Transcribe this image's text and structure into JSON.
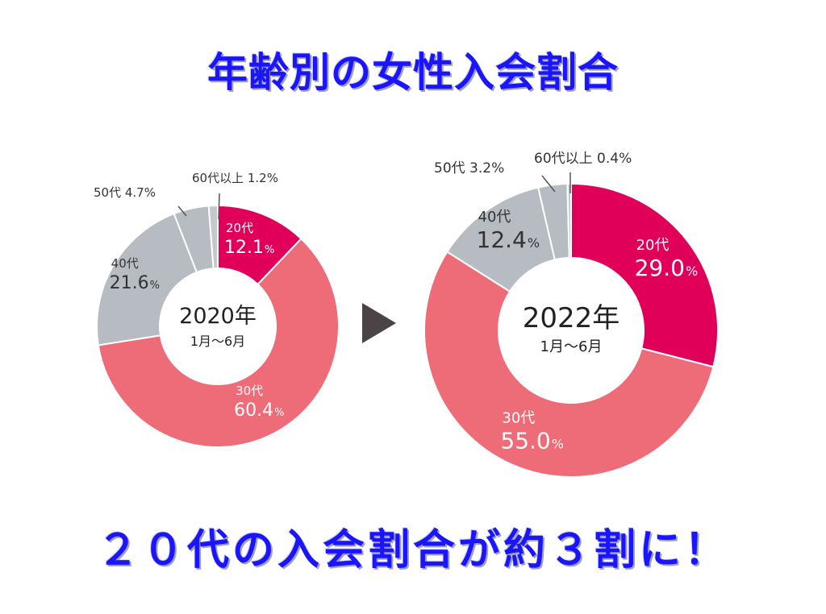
{
  "title": "年齢別の女性入会割合",
  "subtitle": "２０代の入会割合が約３割に！",
  "colors": {
    "20s": "#e0005a",
    "30s": "#ee6b78",
    "40s": "#b7bcc2",
    "50s": "#b7bcc2",
    "60s": "#c4c8cc",
    "arrow": "#4a4446",
    "accent": "#1a14ff"
  },
  "chart_data": [
    {
      "type": "pie",
      "center_year": "2020年",
      "center_period": "1月～6月",
      "slices": [
        {
          "category": "20代",
          "value": 12.1,
          "value_label": "12.1",
          "unit": "%"
        },
        {
          "category": "30代",
          "value": 60.4,
          "value_label": "60.4",
          "unit": "%"
        },
        {
          "category": "40代",
          "value": 21.6,
          "value_label": "21.6",
          "unit": "%"
        },
        {
          "category": "50代",
          "value": 4.7,
          "value_label": "4.7",
          "unit": "%"
        },
        {
          "category": "60代以上",
          "value": 1.2,
          "value_label": "1.2",
          "unit": "%"
        }
      ]
    },
    {
      "type": "pie",
      "center_year": "2022年",
      "center_period": "1月～6月",
      "slices": [
        {
          "category": "20代",
          "value": 29.0,
          "value_label": "29.0",
          "unit": "%"
        },
        {
          "category": "30代",
          "value": 55.0,
          "value_label": "55.0",
          "unit": "%"
        },
        {
          "category": "40代",
          "value": 12.4,
          "value_label": "12.4",
          "unit": "%"
        },
        {
          "category": "50代",
          "value": 3.2,
          "value_label": "3.2",
          "unit": "%"
        },
        {
          "category": "60代以上",
          "value": 0.4,
          "value_label": "0.4",
          "unit": "%"
        }
      ]
    }
  ]
}
